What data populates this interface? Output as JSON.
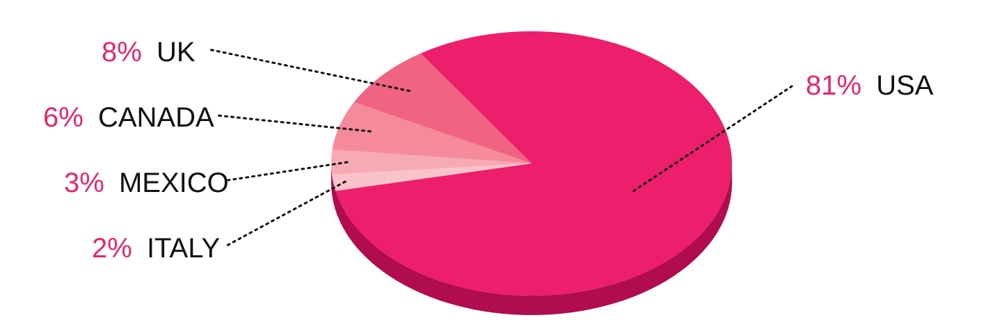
{
  "chart_data": {
    "type": "pie",
    "title": "",
    "categories": [
      "USA",
      "UK",
      "CANADA",
      "MEXICO",
      "ITALY"
    ],
    "values": [
      81,
      8,
      6,
      3,
      2
    ],
    "labels": [
      {
        "category": "USA",
        "percent": "81%",
        "color": "#ed1e6b"
      },
      {
        "category": "UK",
        "percent": "8%",
        "color": "#f06381"
      },
      {
        "category": "CANADA",
        "percent": "6%",
        "color": "#f58a9b"
      },
      {
        "category": "MEXICO",
        "percent": "3%",
        "color": "#f7aab5"
      },
      {
        "category": "ITALY",
        "percent": "2%",
        "color": "#fac3ca"
      }
    ],
    "side_color": "#b00c4f",
    "percent_color": "#e8246b",
    "legend": "none"
  }
}
